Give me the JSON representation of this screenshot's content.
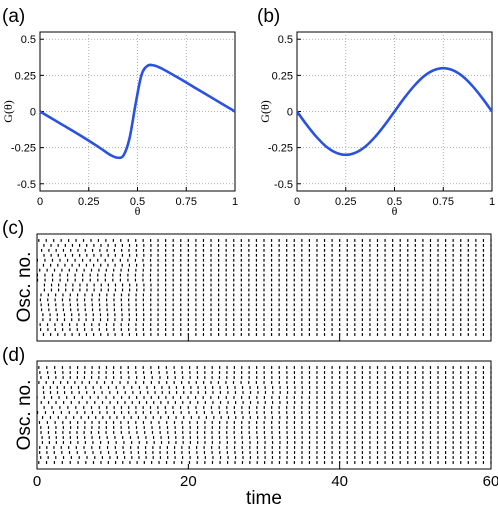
{
  "chart_data": [
    {
      "panel": "(a)",
      "type": "line",
      "xlabel": "θ",
      "ylabel": "G(θ)",
      "xlim": [
        0,
        1
      ],
      "ylim": [
        -0.55,
        0.55
      ],
      "xticks": [
        "0",
        "0.25",
        "0.5",
        "0.75",
        "1"
      ],
      "yticks": [
        "0.5",
        "0.25",
        "0",
        "-0.25",
        "-0.5"
      ],
      "grid": true,
      "series": [
        {
          "color": "#2a52e0",
          "x": [
            0,
            0.1,
            0.2,
            0.3,
            0.36,
            0.4,
            0.43,
            0.46,
            0.49,
            0.52,
            0.55,
            0.58,
            0.62,
            0.7,
            0.8,
            0.9,
            1.0
          ],
          "y": [
            0,
            -0.08,
            -0.16,
            -0.245,
            -0.3,
            -0.32,
            -0.3,
            -0.18,
            0.05,
            0.25,
            0.315,
            0.32,
            0.3,
            0.24,
            0.16,
            0.08,
            0
          ]
        }
      ]
    },
    {
      "panel": "(b)",
      "type": "line",
      "xlabel": "θ",
      "ylabel": "G(θ)",
      "xlim": [
        0,
        1
      ],
      "ylim": [
        -0.55,
        0.55
      ],
      "xticks": [
        "0",
        "0.25",
        "0.5",
        "0.75",
        "1"
      ],
      "yticks": [
        "0.5",
        "0.25",
        "0",
        "-0.25",
        "-0.5"
      ],
      "grid": true,
      "series": [
        {
          "color": "#2a52e0",
          "x": [
            0,
            0.05,
            0.1,
            0.15,
            0.2,
            0.25,
            0.3,
            0.35,
            0.4,
            0.45,
            0.5,
            0.55,
            0.6,
            0.65,
            0.7,
            0.75,
            0.8,
            0.85,
            0.9,
            0.95,
            1.0
          ],
          "y": [
            0,
            -0.093,
            -0.176,
            -0.243,
            -0.285,
            -0.3,
            -0.285,
            -0.243,
            -0.176,
            -0.093,
            0,
            0.093,
            0.176,
            0.243,
            0.285,
            0.3,
            0.285,
            0.243,
            0.176,
            0.093,
            0
          ]
        }
      ]
    },
    {
      "panel": "(c)",
      "type": "scatter",
      "ylabel": "Osc. no.",
      "xlim": [
        0,
        60
      ],
      "oscillators": 20,
      "period": 1.0,
      "sync_time": 16,
      "color": "#000000"
    },
    {
      "panel": "(d)",
      "type": "scatter",
      "ylabel": "Osc. no.",
      "xlabel": "time",
      "xlim": [
        0,
        60
      ],
      "xticks": [
        "0",
        "20",
        "40",
        "60"
      ],
      "oscillators": 20,
      "period": 1.0,
      "sync_time": 37,
      "color": "#000000"
    }
  ]
}
